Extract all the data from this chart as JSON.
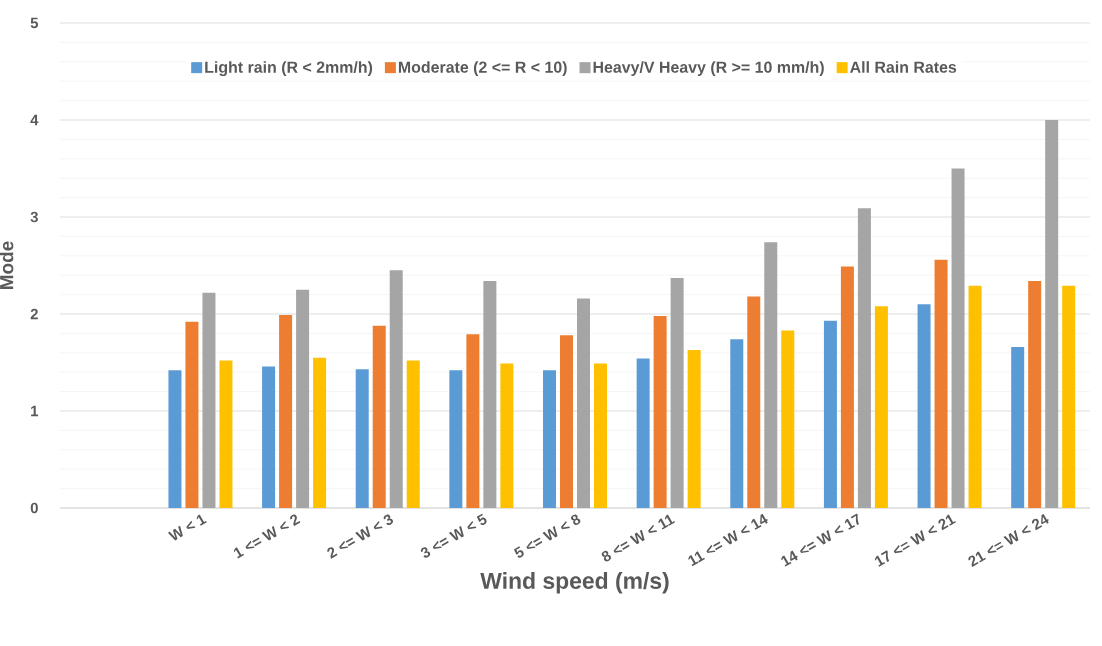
{
  "chart_data": {
    "type": "bar",
    "xlabel": "Wind speed (m/s)",
    "ylabel": "Mode",
    "categories": [
      null,
      "W < 1",
      "1 <= W < 2",
      "2 <= W < 3",
      "3 <= W < 5",
      "5 <= W < 8",
      "8 <= W < 11",
      "11 <= W < 14",
      "14 <= W < 17",
      "17 <= W < 21",
      "21 <= W < 24"
    ],
    "series": [
      {
        "name": "Light rain (R < 2mm/h)",
        "color": "#5b9bd5",
        "values": [
          null,
          1.42,
          1.46,
          1.43,
          1.42,
          1.42,
          1.54,
          1.74,
          1.93,
          2.1,
          1.66
        ]
      },
      {
        "name": "Moderate (2 <= R < 10)",
        "color": "#ed7d31",
        "values": [
          null,
          1.92,
          1.99,
          1.88,
          1.79,
          1.78,
          1.98,
          2.18,
          2.49,
          2.56,
          2.34
        ]
      },
      {
        "name": "Heavy/V Heavy (R >= 10 mm/h)",
        "color": "#a5a5a5",
        "values": [
          null,
          2.22,
          2.25,
          2.45,
          2.34,
          2.16,
          2.37,
          2.74,
          3.09,
          3.5,
          4.0
        ]
      },
      {
        "name": "All Rain Rates",
        "color": "#ffc000",
        "values": [
          null,
          1.52,
          1.55,
          1.52,
          1.49,
          1.49,
          1.63,
          1.83,
          2.08,
          2.29,
          2.29
        ]
      }
    ],
    "ylim": [
      0,
      5
    ],
    "yticks": [
      0,
      1,
      2,
      3,
      4,
      5
    ],
    "grid": "y",
    "legend": "top"
  }
}
